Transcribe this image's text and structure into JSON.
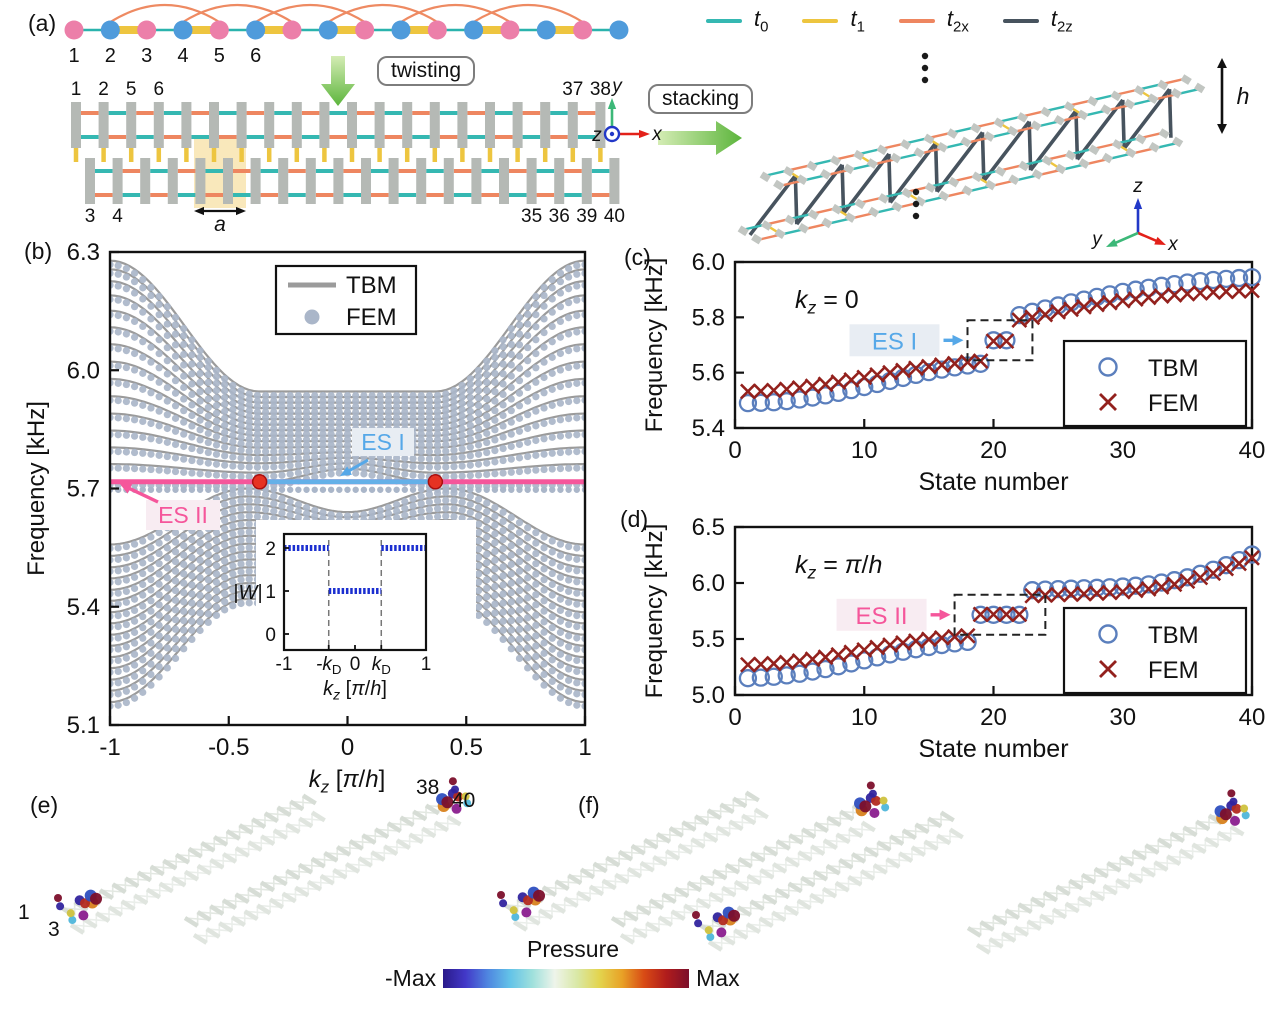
{
  "figure": {
    "panel_labels": {
      "a": "(a)",
      "b": "(b)",
      "c": "(c)",
      "d": "(d)",
      "e": "(e)",
      "f": "(f)"
    },
    "a": {
      "chain_numbers": [
        "1",
        "2",
        "3",
        "4",
        "5",
        "6"
      ],
      "chain_colors": {
        "node_odd": "#ec7fa9",
        "node_even": "#4f9bdb",
        "baseline": "#2ab3ad",
        "strong_bond": "#eec53f",
        "arc": "#ee8a62"
      },
      "twisting_label": "twisting",
      "stacking_label": "stacking",
      "ladder_numbers": {
        "top_left": [
          "1",
          "2",
          "5",
          "6"
        ],
        "top_right": [
          "37",
          "38"
        ],
        "bottom_left": [
          "3",
          "4"
        ],
        "bottom_right": [
          "35",
          "36",
          "39",
          "40"
        ]
      },
      "cell_label": "a",
      "height_label": "h",
      "axes2d": {
        "up": "y",
        "right": "x",
        "out": "z"
      },
      "axes3d": {
        "up": "z",
        "right": "x",
        "left": "y"
      },
      "legend": [
        {
          "main": "t",
          "sub": "0",
          "color": "#35b8b2"
        },
        {
          "main": "t",
          "sub": "1",
          "color": "#edc53f"
        },
        {
          "main": "t",
          "sub": "2x",
          "color": "#ee8660"
        },
        {
          "main": "t",
          "sub": "2z",
          "color": "#47535e"
        }
      ],
      "ladder_colors": {
        "slat": "#b5b9b5",
        "link_a": "#ee8660",
        "link_b": "#35b8b2",
        "vertical": "#edc53f",
        "highlight": "#f8e6b4"
      }
    },
    "e": {
      "site_labels": [
        "1",
        "3",
        "38",
        "40"
      ]
    },
    "colorbar": {
      "title": "Pressure",
      "min_label": "-Max",
      "max_label": "Max",
      "stops": [
        "#2a1a8a",
        "#4238c8",
        "#4f86e0",
        "#63c3e8",
        "#9fe0dc",
        "#eef4ea",
        "#d9e8a6",
        "#e3d44e",
        "#e8a227",
        "#d84a15",
        "#b01c1c",
        "#7c0f2b"
      ]
    },
    "blob_colors": [
      "#7c0f2b",
      "#31249e",
      "#d8821e",
      "#4fb6da",
      "#b32b20",
      "#2e4fc0",
      "#cfc23e",
      "#8a1d8e"
    ]
  },
  "chart_data": [
    {
      "id": "b",
      "type": "line+scatter",
      "ylabel": "Frequency [kHz]",
      "xlabel_rich": [
        {
          "t": "k",
          "it": true
        },
        {
          "t": "z",
          "sub": true,
          "it": true
        },
        {
          "t": "  ["
        },
        {
          "t": "π",
          "it": true
        },
        {
          "t": "/"
        },
        {
          "t": "h",
          "it": true
        },
        {
          "t": "]"
        }
      ],
      "xlim": [
        -1,
        1
      ],
      "ylim": [
        5.1,
        6.3
      ],
      "yticks": [
        "6.3",
        "6.0",
        "5.7",
        "5.4",
        "5.1"
      ],
      "xticks": [
        "-1",
        "-0.5",
        "0",
        "0.5",
        "1"
      ],
      "legend": [
        {
          "label": "TBM",
          "marker": "line",
          "color": "#9b9b9b"
        },
        {
          "label": "FEM",
          "marker": "dot",
          "color": "#aab6c9"
        }
      ],
      "bands": {
        "upper": {
          "edge": [
            5.72,
            5.762,
            5.804,
            5.847,
            5.89,
            5.934,
            5.978,
            6.022,
            6.066,
            6.109,
            6.151,
            6.19,
            6.226,
            6.256,
            6.278
          ],
          "center": [
            5.75,
            5.764,
            5.778,
            5.792,
            5.806,
            5.82,
            5.834,
            5.848,
            5.862,
            5.876,
            5.89,
            5.904,
            5.918,
            5.932,
            5.946
          ],
          "dip": [
            0.035,
            0.024,
            0.014,
            0.007,
            0.002,
            0,
            0,
            0,
            0,
            0,
            0,
            0,
            0,
            0,
            0
          ]
        },
        "lower": {
          "edge": [
            5.158,
            5.187,
            5.215,
            5.244,
            5.272,
            5.301,
            5.329,
            5.358,
            5.386,
            5.415,
            5.443,
            5.472,
            5.5,
            5.529,
            5.558
          ],
          "peak": [
            5.42,
            5.44,
            5.46,
            5.48,
            5.5,
            5.52,
            5.54,
            5.56,
            5.58,
            5.6,
            5.62,
            5.64,
            5.66,
            5.68,
            5.7
          ],
          "dip": [
            0.012,
            0.013,
            0.014,
            0.015,
            0.017,
            0.019,
            0.021,
            0.024,
            0.027,
            0.031,
            0.035,
            0.04,
            0.046,
            0.053,
            0.06
          ]
        }
      },
      "edge_states": [
        {
          "label": "ES I",
          "freq": 5.717,
          "k_range": [
            -0.37,
            0.37
          ],
          "color": "#64b0e8",
          "label_color": "#56a8e8",
          "label_bg": "#e8edf3"
        },
        {
          "label": "ES II",
          "freq": 5.717,
          "k_range": [
            -1,
            1
          ],
          "color": "#f5569b",
          "label_color": "#f5569b",
          "label_bg": "#f8ecf2"
        }
      ],
      "dirac_points": {
        "k": [
          -0.37,
          0.37
        ],
        "freq": 5.717,
        "color": "#e63222"
      },
      "inset": {
        "ylabel_rich": [
          {
            "t": "|"
          },
          {
            "t": "W",
            "it": true
          },
          {
            "t": "|"
          }
        ],
        "yticks": [
          "2",
          "1",
          "0"
        ],
        "xlabel_rich": [
          {
            "t": "k",
            "it": true
          },
          {
            "t": "z",
            "sub": true,
            "it": true
          },
          {
            "t": "  ["
          },
          {
            "t": "π",
            "it": true
          },
          {
            "t": "/"
          },
          {
            "t": "h",
            "it": true
          },
          {
            "t": "]"
          }
        ],
        "xticks_rich": [
          [
            {
              "t": "-1"
            }
          ],
          [
            {
              "t": "-k",
              "it": true
            },
            {
              "t": "D",
              "sub": true
            }
          ],
          [
            {
              "t": "0"
            }
          ],
          [
            {
              "t": "k",
              "it": true
            },
            {
              "t": "D",
              "sub": true
            }
          ],
          [
            {
              "t": "1"
            }
          ]
        ],
        "kD": 0.37,
        "segments": [
          {
            "k": [
              -1,
              -0.37
            ],
            "W": 2
          },
          {
            "k": [
              -0.37,
              0.37
            ],
            "W": 1
          },
          {
            "k": [
              0.37,
              1
            ],
            "W": 2
          }
        ],
        "color": "#1b2fd0"
      }
    },
    {
      "id": "c",
      "type": "scatter",
      "annotation_rich": [
        {
          "t": "k",
          "it": true
        },
        {
          "t": "z",
          "sub": true,
          "it": true
        },
        {
          "t": " = 0"
        }
      ],
      "xlabel": "State number",
      "ylabel": "Frequency [kHz]",
      "xlim": [
        0,
        40
      ],
      "ylim": [
        5.4,
        6.0
      ],
      "yticks": [
        "6.0",
        "5.8",
        "5.6",
        "5.4"
      ],
      "xticks": [
        "0",
        "10",
        "20",
        "30",
        "40"
      ],
      "es_label": "ES I",
      "es_color": "#56a8e8",
      "es_bg": "#e8edf3",
      "es_states": [
        20,
        21
      ],
      "legend": [
        {
          "label": "TBM",
          "marker": "circle",
          "color": "#5b7fbd"
        },
        {
          "label": "FEM",
          "marker": "x",
          "color": "#93211d"
        }
      ],
      "series": {
        "TBM": [
          5.49,
          5.491,
          5.493,
          5.497,
          5.503,
          5.51,
          5.518,
          5.527,
          5.537,
          5.548,
          5.559,
          5.57,
          5.581,
          5.592,
          5.602,
          5.611,
          5.619,
          5.626,
          5.632,
          5.717,
          5.717,
          5.808,
          5.82,
          5.832,
          5.843,
          5.854,
          5.864,
          5.874,
          5.883,
          5.892,
          5.9,
          5.907,
          5.914,
          5.92,
          5.926,
          5.931,
          5.935,
          5.939,
          5.942,
          5.945
        ],
        "FEM": [
          5.532,
          5.533,
          5.536,
          5.54,
          5.545,
          5.551,
          5.558,
          5.566,
          5.574,
          5.583,
          5.592,
          5.6,
          5.608,
          5.616,
          5.622,
          5.628,
          5.633,
          5.638,
          5.642,
          5.714,
          5.714,
          5.79,
          5.8,
          5.81,
          5.82,
          5.829,
          5.838,
          5.846,
          5.853,
          5.86,
          5.866,
          5.872,
          5.877,
          5.881,
          5.885,
          5.888,
          5.891,
          5.893,
          5.895,
          5.897
        ]
      }
    },
    {
      "id": "d",
      "type": "scatter",
      "annotation_rich": [
        {
          "t": "k",
          "it": true
        },
        {
          "t": "z",
          "sub": true,
          "it": true
        },
        {
          "t": " = "
        },
        {
          "t": "π",
          "it": true
        },
        {
          "t": "/"
        },
        {
          "t": "h",
          "it": true
        }
      ],
      "xlabel": "State number",
      "ylabel": "Frequency [kHz]",
      "xlim": [
        0,
        40
      ],
      "ylim": [
        5.0,
        6.5
      ],
      "yticks": [
        "6.5",
        "6.0",
        "5.5",
        "5.0"
      ],
      "xticks": [
        "0",
        "10",
        "20",
        "30",
        "40"
      ],
      "es_label": "ES II",
      "es_color": "#f5569b",
      "es_bg": "#f8ecf2",
      "es_states": [
        19,
        20,
        21,
        22
      ],
      "legend": [
        {
          "label": "TBM",
          "marker": "circle",
          "color": "#5b7fbd"
        },
        {
          "label": "FEM",
          "marker": "x",
          "color": "#93211d"
        }
      ],
      "series": {
        "TBM": [
          5.15,
          5.155,
          5.163,
          5.175,
          5.19,
          5.209,
          5.231,
          5.256,
          5.282,
          5.309,
          5.336,
          5.362,
          5.386,
          5.408,
          5.428,
          5.446,
          5.461,
          5.474,
          5.716,
          5.716,
          5.716,
          5.716,
          5.936,
          5.941,
          5.945,
          5.949,
          5.953,
          5.957,
          5.962,
          5.968,
          5.976,
          5.988,
          6.004,
          6.025,
          6.051,
          6.082,
          6.118,
          6.159,
          6.204,
          6.254
        ],
        "FEM": [
          5.27,
          5.274,
          5.281,
          5.291,
          5.304,
          5.32,
          5.338,
          5.359,
          5.381,
          5.403,
          5.425,
          5.446,
          5.465,
          5.482,
          5.497,
          5.51,
          5.52,
          5.529,
          5.72,
          5.72,
          5.72,
          5.72,
          5.886,
          5.891,
          5.895,
          5.899,
          5.903,
          5.908,
          5.914,
          5.922,
          5.933,
          5.947,
          5.965,
          5.988,
          6.016,
          6.049,
          6.087,
          6.129,
          6.175,
          6.225
        ]
      }
    }
  ]
}
